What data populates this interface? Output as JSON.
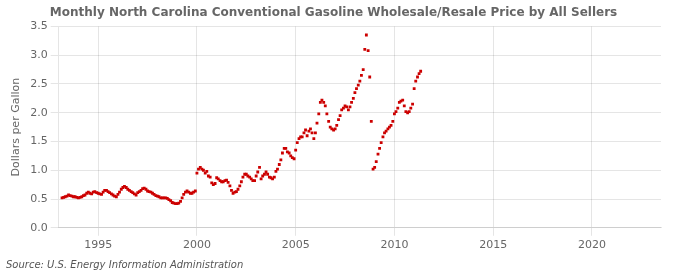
{
  "chart_data": {
    "type": "scatter",
    "title": "Monthly North Carolina Conventional Gasoline Wholesale/Resale Price by All Sellers",
    "ylabel": "Dollars per Gallon",
    "annotation": "Source: U.S. Energy Information Administration",
    "color": "#cc0000",
    "marker": "square",
    "grid": true,
    "xlim": [
      1993.0,
      2023.5
    ],
    "xticks": [
      1995,
      2000,
      2005,
      2010,
      2015,
      2020
    ],
    "ylim": [
      0.0,
      3.5
    ],
    "yticks": [
      {
        "value": 0.0,
        "label": "0.0"
      },
      0.5,
      {
        "value": 1.0,
        "label": "1.0"
      },
      1.5,
      {
        "value": 2.0,
        "label": "2.0"
      },
      2.5,
      {
        "value": 3.0,
        "label": "3.0"
      },
      3.5
    ],
    "x": [
      1993.17,
      1993.25,
      1993.33,
      1993.42,
      1993.5,
      1993.58,
      1993.67,
      1993.75,
      1993.83,
      1993.92,
      1994.0,
      1994.08,
      1994.17,
      1994.25,
      1994.33,
      1994.42,
      1994.5,
      1994.58,
      1994.67,
      1994.75,
      1994.83,
      1994.92,
      1995.0,
      1995.08,
      1995.17,
      1995.25,
      1995.33,
      1995.42,
      1995.5,
      1995.58,
      1995.67,
      1995.75,
      1995.83,
      1995.92,
      1996.0,
      1996.08,
      1996.17,
      1996.25,
      1996.33,
      1996.42,
      1996.5,
      1996.58,
      1996.67,
      1996.75,
      1996.83,
      1996.92,
      1997.0,
      1997.08,
      1997.17,
      1997.25,
      1997.33,
      1997.42,
      1997.5,
      1997.58,
      1997.67,
      1997.75,
      1997.83,
      1997.92,
      1998.0,
      1998.08,
      1998.17,
      1998.25,
      1998.33,
      1998.42,
      1998.5,
      1998.58,
      1998.67,
      1998.75,
      1998.83,
      1998.92,
      1999.0,
      1999.08,
      1999.17,
      1999.25,
      1999.33,
      1999.42,
      1999.5,
      1999.58,
      1999.67,
      1999.75,
      1999.83,
      1999.92,
      2000.0,
      2000.08,
      2000.17,
      2000.25,
      2000.33,
      2000.42,
      2000.5,
      2000.58,
      2000.67,
      2000.75,
      2000.83,
      2000.92,
      2001.0,
      2001.08,
      2001.17,
      2001.25,
      2001.33,
      2001.42,
      2001.5,
      2001.58,
      2001.67,
      2001.75,
      2001.83,
      2001.92,
      2002.0,
      2002.08,
      2002.17,
      2002.25,
      2002.33,
      2002.42,
      2002.5,
      2002.58,
      2002.67,
      2002.75,
      2002.83,
      2002.92,
      2003.0,
      2003.08,
      2003.17,
      2003.25,
      2003.33,
      2003.42,
      2003.5,
      2003.58,
      2003.67,
      2003.75,
      2003.83,
      2003.92,
      2004.0,
      2004.08,
      2004.17,
      2004.25,
      2004.33,
      2004.42,
      2004.5,
      2004.58,
      2004.67,
      2004.75,
      2004.83,
      2004.92,
      2005.0,
      2005.08,
      2005.17,
      2005.25,
      2005.33,
      2005.42,
      2005.5,
      2005.58,
      2005.67,
      2005.75,
      2005.83,
      2005.92,
      2006.0,
      2006.08,
      2006.17,
      2006.25,
      2006.33,
      2006.42,
      2006.5,
      2006.58,
      2006.67,
      2006.75,
      2006.83,
      2006.92,
      2007.0,
      2007.08,
      2007.17,
      2007.25,
      2007.33,
      2007.42,
      2007.5,
      2007.58,
      2007.67,
      2007.75,
      2007.83,
      2007.92,
      2008.0,
      2008.08,
      2008.17,
      2008.25,
      2008.33,
      2008.42,
      2008.5,
      2008.58,
      2008.67,
      2008.75,
      2008.83,
      2008.92,
      2009.0,
      2009.08,
      2009.17,
      2009.25,
      2009.33,
      2009.42,
      2009.5,
      2009.58,
      2009.67,
      2009.75,
      2009.83,
      2009.92,
      2010.0,
      2010.08,
      2010.17,
      2010.25,
      2010.33,
      2010.42,
      2010.5,
      2010.58,
      2010.67,
      2010.75,
      2010.83,
      2010.92,
      2011.0,
      2011.08,
      2011.17,
      2011.25,
      2011.33
    ],
    "values": [
      0.52,
      0.53,
      0.54,
      0.55,
      0.57,
      0.56,
      0.55,
      0.54,
      0.54,
      0.53,
      0.52,
      0.53,
      0.54,
      0.56,
      0.57,
      0.6,
      0.62,
      0.6,
      0.59,
      0.62,
      0.63,
      0.61,
      0.6,
      0.59,
      0.58,
      0.62,
      0.65,
      0.65,
      0.63,
      0.61,
      0.59,
      0.57,
      0.55,
      0.54,
      0.58,
      0.62,
      0.67,
      0.7,
      0.72,
      0.7,
      0.67,
      0.65,
      0.63,
      0.61,
      0.59,
      0.57,
      0.61,
      0.63,
      0.65,
      0.68,
      0.69,
      0.67,
      0.64,
      0.63,
      0.62,
      0.6,
      0.58,
      0.56,
      0.55,
      0.54,
      0.52,
      0.52,
      0.52,
      0.52,
      0.51,
      0.49,
      0.47,
      0.44,
      0.43,
      0.42,
      0.42,
      0.43,
      0.46,
      0.52,
      0.58,
      0.62,
      0.64,
      0.62,
      0.6,
      0.6,
      0.62,
      0.64,
      0.95,
      1.02,
      1.05,
      1.02,
      1.0,
      0.95,
      0.98,
      0.9,
      0.88,
      0.78,
      0.75,
      0.77,
      0.87,
      0.85,
      0.82,
      0.8,
      0.8,
      0.82,
      0.83,
      0.79,
      0.73,
      0.65,
      0.6,
      0.62,
      0.63,
      0.67,
      0.73,
      0.8,
      0.88,
      0.93,
      0.93,
      0.9,
      0.88,
      0.85,
      0.82,
      0.82,
      0.9,
      0.97,
      1.05,
      0.85,
      0.9,
      0.93,
      0.97,
      0.93,
      0.88,
      0.87,
      0.85,
      0.88,
      0.98,
      1.02,
      1.1,
      1.18,
      1.3,
      1.38,
      1.38,
      1.32,
      1.3,
      1.25,
      1.22,
      1.2,
      1.35,
      1.48,
      1.55,
      1.58,
      1.58,
      1.65,
      1.7,
      1.6,
      1.68,
      1.72,
      1.65,
      1.55,
      1.65,
      1.82,
      1.98,
      2.18,
      2.22,
      2.18,
      2.12,
      1.98,
      1.85,
      1.75,
      1.72,
      1.7,
      1.72,
      1.78,
      1.88,
      1.95,
      2.05,
      2.08,
      2.12,
      2.1,
      2.05,
      2.1,
      2.18,
      2.25,
      2.35,
      2.42,
      2.48,
      2.55,
      2.65,
      2.75,
      3.1,
      3.35,
      3.08,
      2.62,
      1.85,
      1.02,
      1.05,
      1.15,
      1.28,
      1.38,
      1.48,
      1.58,
      1.65,
      1.68,
      1.72,
      1.75,
      1.78,
      1.85,
      1.98,
      2.02,
      2.08,
      2.18,
      2.2,
      2.22,
      2.12,
      2.02,
      2.0,
      2.02,
      2.08,
      2.15,
      2.42,
      2.55,
      2.62,
      2.68,
      2.72
    ]
  }
}
